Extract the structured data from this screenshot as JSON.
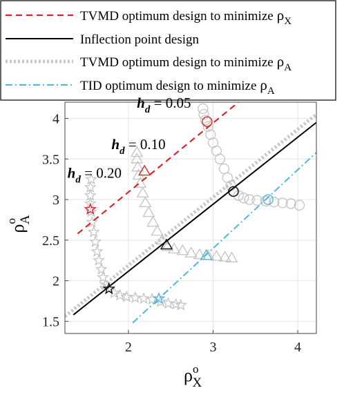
{
  "chart_data": {
    "type": "line",
    "xlabel": "ρ",
    "xlabel_sup": "o",
    "xlabel_sub": "X",
    "ylabel": "ρ",
    "ylabel_sup": "o",
    "ylabel_sub": "A",
    "xlim": [
      1.25,
      4.22
    ],
    "ylim": [
      1.35,
      4.2
    ],
    "xticks": [
      2,
      3,
      4
    ],
    "yticks": [
      1.5,
      2,
      2.5,
      3,
      3.5,
      4
    ],
    "grid": true,
    "legend_position": "top",
    "colors": {
      "red": "#d9262b",
      "black": "#000000",
      "gray": "#c8c8c8",
      "blue": "#4fb6dc"
    },
    "legend": [
      {
        "key": "tvmd_rho_x",
        "text": "TVMD optimum design to minimize",
        "sym": "ρ",
        "sub": "X",
        "style": "red-dashed"
      },
      {
        "key": "inflection",
        "text": "Inflection point design",
        "style": "black-solid"
      },
      {
        "key": "tvmd_rho_a",
        "text": "TVMD optimum design to minimize",
        "sym": "ρ",
        "sub": "A",
        "style": "gray-dotted"
      },
      {
        "key": "tid_rho_a",
        "text": "TID optimum design to minimize",
        "sym": "ρ",
        "sub": "A",
        "style": "blue-dashdot"
      }
    ],
    "series": [
      {
        "key": "tvmd_rho_x",
        "x": [
          1.4,
          3.3
        ],
        "y": [
          2.58,
          4.2
        ]
      },
      {
        "key": "inflection",
        "x": [
          1.35,
          4.22
        ],
        "y": [
          1.58,
          3.95
        ]
      },
      {
        "key": "tvmd_rho_a",
        "x": [
          1.25,
          4.22
        ],
        "y": [
          1.56,
          4.05
        ]
      },
      {
        "key": "tid_rho_a",
        "x": [
          2.05,
          4.22
        ],
        "y": [
          1.48,
          3.58
        ]
      }
    ],
    "curves": [
      {
        "label": "hd=0.05",
        "marker": "circle",
        "points": [
          [
            2.88,
            4.12
          ],
          [
            2.89,
            4.05
          ],
          [
            2.91,
            3.98
          ],
          [
            2.94,
            3.9
          ],
          [
            2.97,
            3.8
          ],
          [
            3.0,
            3.7
          ],
          [
            3.04,
            3.6
          ],
          [
            3.08,
            3.5
          ],
          [
            3.13,
            3.38
          ],
          [
            3.17,
            3.27
          ],
          [
            3.21,
            3.17
          ],
          [
            3.25,
            3.1
          ],
          [
            3.3,
            3.05
          ],
          [
            3.36,
            3.02
          ],
          [
            3.43,
            3.0
          ],
          [
            3.52,
            2.99
          ],
          [
            3.62,
            2.98
          ],
          [
            3.72,
            2.97
          ],
          [
            3.82,
            2.96
          ],
          [
            3.92,
            2.95
          ],
          [
            4.02,
            2.93
          ]
        ]
      },
      {
        "label": "hd=0.10",
        "marker": "triangle",
        "points": [
          [
            2.1,
            3.58
          ],
          [
            2.1,
            3.5
          ],
          [
            2.11,
            3.4
          ],
          [
            2.12,
            3.3
          ],
          [
            2.14,
            3.2
          ],
          [
            2.17,
            3.08
          ],
          [
            2.2,
            2.96
          ],
          [
            2.24,
            2.84
          ],
          [
            2.29,
            2.72
          ],
          [
            2.34,
            2.61
          ],
          [
            2.4,
            2.5
          ],
          [
            2.46,
            2.42
          ],
          [
            2.54,
            2.39
          ],
          [
            2.64,
            2.37
          ],
          [
            2.74,
            2.34
          ],
          [
            2.84,
            2.32
          ],
          [
            2.94,
            2.31
          ],
          [
            3.04,
            2.3
          ],
          [
            3.14,
            2.29
          ],
          [
            3.22,
            2.28
          ]
        ]
      },
      {
        "label": "hd=0.20",
        "marker": "star",
        "points": [
          [
            1.56,
            3.25
          ],
          [
            1.55,
            3.15
          ],
          [
            1.55,
            3.05
          ],
          [
            1.55,
            2.95
          ],
          [
            1.56,
            2.85
          ],
          [
            1.57,
            2.72
          ],
          [
            1.59,
            2.6
          ],
          [
            1.61,
            2.48
          ],
          [
            1.63,
            2.36
          ],
          [
            1.65,
            2.25
          ],
          [
            1.68,
            2.14
          ],
          [
            1.7,
            2.04
          ],
          [
            1.73,
            1.95
          ],
          [
            1.77,
            1.9
          ],
          [
            1.83,
            1.85
          ],
          [
            1.9,
            1.82
          ],
          [
            1.98,
            1.8
          ],
          [
            2.08,
            1.79
          ],
          [
            2.18,
            1.78
          ],
          [
            2.28,
            1.77
          ],
          [
            2.38,
            1.74
          ],
          [
            2.47,
            1.72
          ],
          [
            2.56,
            1.71
          ],
          [
            2.62,
            1.7
          ]
        ]
      }
    ],
    "key_points": [
      {
        "series": "tvmd_rho_x",
        "marker": "circle",
        "x": 2.93,
        "y": 3.96
      },
      {
        "series": "tvmd_rho_x",
        "marker": "triangle",
        "x": 2.19,
        "y": 3.35
      },
      {
        "series": "tvmd_rho_x",
        "marker": "star",
        "x": 1.55,
        "y": 2.88
      },
      {
        "series": "inflection",
        "marker": "circle",
        "x": 3.24,
        "y": 3.1
      },
      {
        "series": "inflection",
        "marker": "triangle",
        "x": 2.45,
        "y": 2.44
      },
      {
        "series": "inflection",
        "marker": "star",
        "x": 1.77,
        "y": 1.9
      },
      {
        "series": "tid_rho_a",
        "marker": "circle",
        "x": 3.65,
        "y": 3.0
      },
      {
        "series": "tid_rho_a",
        "marker": "triangle",
        "x": 2.92,
        "y": 2.31
      },
      {
        "series": "tid_rho_a",
        "marker": "star",
        "x": 2.36,
        "y": 1.78
      }
    ],
    "annotations": [
      {
        "sym": "h",
        "sub": "d",
        "text": " = 0.05",
        "x": 2.1,
        "y": 4.13
      },
      {
        "sym": "h",
        "sub": "d",
        "text": " = 0.10",
        "x": 1.8,
        "y": 3.62
      },
      {
        "sym": "h",
        "sub": "d",
        "text": " = 0.20",
        "x": 1.28,
        "y": 3.27
      }
    ]
  }
}
